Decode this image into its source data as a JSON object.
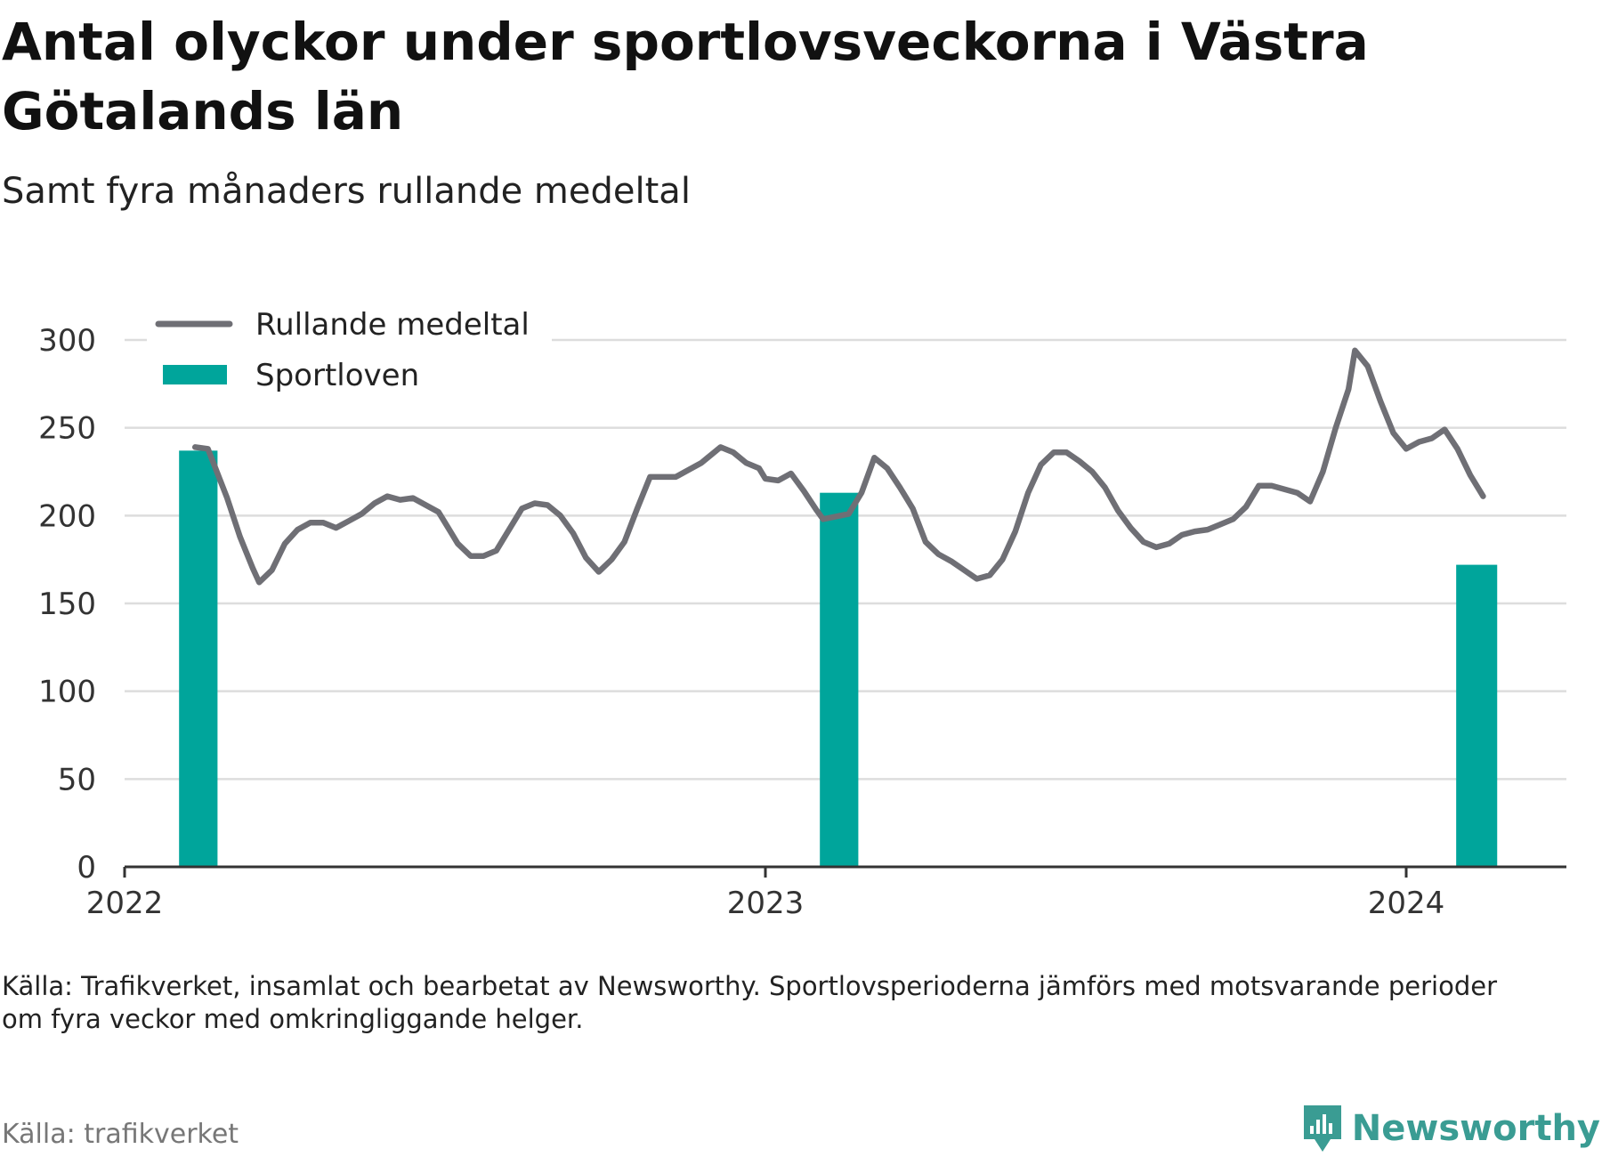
{
  "title": "Antal olyckor under sportlovsveckorna i Västra Götalands län",
  "subtitle": "Samt fyra månaders rullande medeltal",
  "note": "Källa: Trafikverket, insamlat och bearbetat av Newsworthy. Sportlovsperioderna jämförs med motsvarande perioder om fyra veckor med omkringliggande helger.",
  "source": "Källa: trafikverket",
  "brand": "Newsworthy",
  "colors": {
    "line": "#6f6f75",
    "bars": "#00a59b",
    "grid": "#dddddd",
    "axis": "#333333",
    "brand": "#3a9c93"
  },
  "chart_data": {
    "type": "bar+line",
    "ylim": [
      0,
      300
    ],
    "yticks": [
      "0",
      "50",
      "100",
      "150",
      "200",
      "250",
      "300"
    ],
    "xlim": [
      2022.0,
      2024.25
    ],
    "xticks": [
      {
        "value": 2022,
        "label": "2022"
      },
      {
        "value": 2023,
        "label": "2023"
      },
      {
        "value": 2024,
        "label": "2024"
      }
    ],
    "grid": true,
    "legend": {
      "position": "top-left",
      "items": [
        {
          "label": "Rullande medeltal",
          "symbol": "line"
        },
        {
          "label": "Sportloven",
          "symbol": "bar"
        }
      ]
    },
    "series": [
      {
        "name": "Sportloven",
        "kind": "bar",
        "points": [
          {
            "x": 2022.115,
            "x_start": 2022.085,
            "x_end": 2022.145,
            "y": 237
          },
          {
            "x": 2023.115,
            "x_start": 2023.085,
            "x_end": 2023.145,
            "y": 213
          },
          {
            "x": 2024.11,
            "x_start": 2024.078,
            "x_end": 2024.142,
            "y": 172
          }
        ]
      },
      {
        "name": "Rullande medeltal",
        "kind": "line",
        "points": [
          [
            2022.11,
            239
          ],
          [
            2022.13,
            238
          ],
          [
            2022.16,
            210
          ],
          [
            2022.18,
            188
          ],
          [
            2022.2,
            170
          ],
          [
            2022.21,
            162
          ],
          [
            2022.23,
            169
          ],
          [
            2022.25,
            184
          ],
          [
            2022.27,
            192
          ],
          [
            2022.29,
            196
          ],
          [
            2022.31,
            196
          ],
          [
            2022.33,
            193
          ],
          [
            2022.35,
            197
          ],
          [
            2022.37,
            201
          ],
          [
            2022.39,
            207
          ],
          [
            2022.41,
            211
          ],
          [
            2022.43,
            209
          ],
          [
            2022.45,
            210
          ],
          [
            2022.47,
            206
          ],
          [
            2022.49,
            202
          ],
          [
            2022.5,
            196
          ],
          [
            2022.52,
            184
          ],
          [
            2022.54,
            177
          ],
          [
            2022.56,
            177
          ],
          [
            2022.58,
            180
          ],
          [
            2022.6,
            192
          ],
          [
            2022.62,
            204
          ],
          [
            2022.64,
            207
          ],
          [
            2022.66,
            206
          ],
          [
            2022.68,
            200
          ],
          [
            2022.7,
            190
          ],
          [
            2022.72,
            176
          ],
          [
            2022.74,
            168
          ],
          [
            2022.76,
            175
          ],
          [
            2022.78,
            185
          ],
          [
            2022.8,
            204
          ],
          [
            2022.82,
            222
          ],
          [
            2022.84,
            222
          ],
          [
            2022.86,
            222
          ],
          [
            2022.88,
            226
          ],
          [
            2022.9,
            230
          ],
          [
            2022.91,
            233
          ],
          [
            2022.93,
            239
          ],
          [
            2022.95,
            236
          ],
          [
            2022.97,
            230
          ],
          [
            2022.99,
            227
          ],
          [
            2023.0,
            221
          ],
          [
            2023.02,
            220
          ],
          [
            2023.04,
            224
          ],
          [
            2023.06,
            214
          ],
          [
            2023.08,
            203
          ],
          [
            2023.09,
            198
          ],
          [
            2023.13,
            201
          ],
          [
            2023.15,
            213
          ],
          [
            2023.17,
            233
          ],
          [
            2023.19,
            227
          ],
          [
            2023.21,
            216
          ],
          [
            2023.23,
            204
          ],
          [
            2023.25,
            185
          ],
          [
            2023.27,
            178
          ],
          [
            2023.29,
            174
          ],
          [
            2023.31,
            169
          ],
          [
            2023.33,
            164
          ],
          [
            2023.35,
            166
          ],
          [
            2023.37,
            175
          ],
          [
            2023.39,
            191
          ],
          [
            2023.41,
            213
          ],
          [
            2023.43,
            229
          ],
          [
            2023.45,
            236
          ],
          [
            2023.47,
            236
          ],
          [
            2023.49,
            231
          ],
          [
            2023.51,
            225
          ],
          [
            2023.53,
            216
          ],
          [
            2023.55,
            203
          ],
          [
            2023.57,
            193
          ],
          [
            2023.59,
            185
          ],
          [
            2023.61,
            182
          ],
          [
            2023.63,
            184
          ],
          [
            2023.65,
            189
          ],
          [
            2023.67,
            191
          ],
          [
            2023.69,
            192
          ],
          [
            2023.71,
            195
          ],
          [
            2023.73,
            198
          ],
          [
            2023.75,
            205
          ],
          [
            2023.77,
            217
          ],
          [
            2023.79,
            217
          ],
          [
            2023.81,
            215
          ],
          [
            2023.83,
            213
          ],
          [
            2023.85,
            208
          ],
          [
            2023.87,
            225
          ],
          [
            2023.89,
            250
          ],
          [
            2023.91,
            272
          ],
          [
            2023.92,
            294
          ],
          [
            2023.94,
            285
          ],
          [
            2023.96,
            265
          ],
          [
            2023.98,
            247
          ],
          [
            2024.0,
            238
          ],
          [
            2024.02,
            242
          ],
          [
            2024.04,
            244
          ],
          [
            2024.06,
            249
          ],
          [
            2024.08,
            238
          ],
          [
            2024.1,
            223
          ],
          [
            2024.12,
            211
          ]
        ]
      }
    ]
  }
}
